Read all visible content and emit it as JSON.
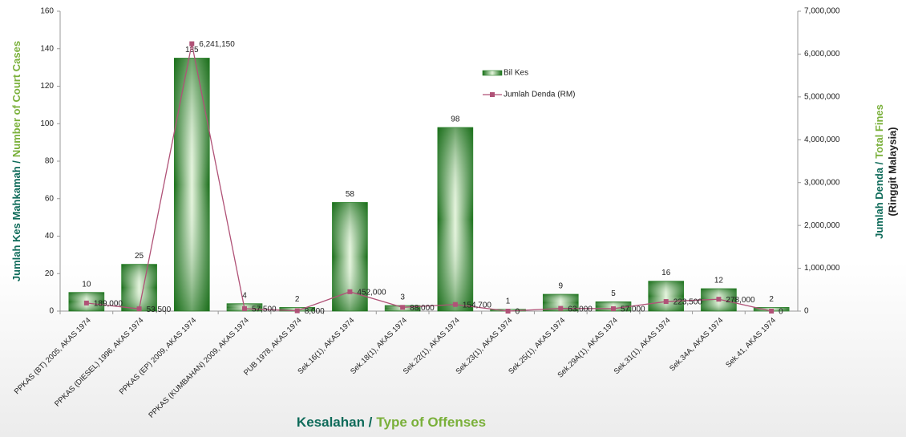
{
  "chart_data": {
    "type": "bar",
    "categories": [
      "PPKAS (BT) 2005, AKAS 1974",
      "PPKAS (DIESEL) 1996, AKAS 1974",
      "PPKAS (EP) 2009, AKAS 1974",
      "PPKAS (KUMBAHAN) 2009, AKAS 1974",
      "PUB 1978, AKAS 1974",
      "Sek.16(1), AKAS 1974",
      "Sek.18(1), AKAS 1974",
      "Sek.22(1), AKAS 1974",
      "Sek.23(1), AKAS 1974",
      "Sek.25(1), AKAS 1974",
      "Sek.29A(1), AKAS 1974",
      "Sek.31(1), AKAS 1974",
      "Sek.34A, AKAS 1974",
      "Sek.41, AKAS 1974"
    ],
    "series": [
      {
        "name": "Bil Kes",
        "type": "bar",
        "color": "#1f7f1f",
        "values": [
          10,
          25,
          135,
          4,
          2,
          58,
          3,
          98,
          1,
          9,
          5,
          16,
          12,
          2
        ]
      },
      {
        "name": "Jumlah Denda (RM)",
        "type": "line",
        "axis": "y2",
        "color": "#b05277",
        "values": [
          189000,
          53500,
          6241150,
          57500,
          8000,
          452000,
          88000,
          154700,
          0,
          63000,
          57000,
          223500,
          278000,
          0
        ],
        "value_labels": [
          "189,000",
          "53,500",
          "6,241,150",
          "57,500",
          "8,000",
          "452,000",
          "88,000",
          "154,700",
          "0",
          "63,000",
          "57,000",
          "223,500",
          "278,000",
          "0"
        ]
      }
    ],
    "ylim": [
      0,
      160
    ],
    "yticks": [
      0,
      20,
      40,
      60,
      80,
      100,
      120,
      140,
      160
    ],
    "y2lim": [
      0,
      7000000
    ],
    "y2ticks": [
      0,
      {
        "value": 1000000,
        "label": "1,000,000"
      },
      {
        "value": 2000000,
        "label": "2,000,000"
      },
      {
        "value": 3000000,
        "label": "3,000,000"
      },
      {
        "value": 4000000,
        "label": "4,000,000"
      },
      {
        "value": 5000000,
        "label": "5,000,000"
      },
      {
        "value": 6000000,
        "label": "6,000,000"
      },
      {
        "value": 7000000,
        "label": "7,000,000"
      }
    ],
    "ylabel": [
      "Jumlah Kes Mahkamah /",
      "Number of Court Cases"
    ],
    "y2label": [
      "Jumlah Denda /",
      "Total Fines",
      "(Ringgit Malaysia)"
    ],
    "xlabel": [
      "Kesalahan /",
      "Type of Offenses"
    ],
    "legend": "top-right"
  }
}
